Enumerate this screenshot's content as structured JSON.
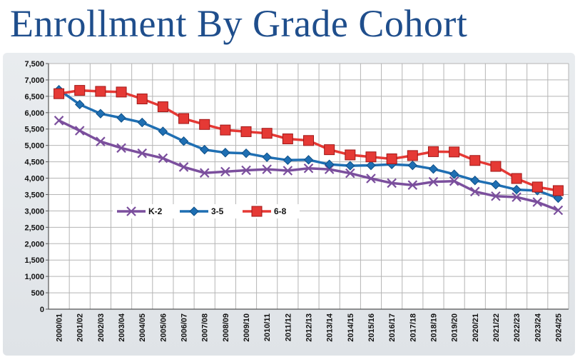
{
  "page": {
    "title": "Enrollment By Grade Cohort"
  },
  "chart_data": {
    "type": "line",
    "title": "Enrollment By Grade Cohort",
    "xlabel": "",
    "ylabel": "",
    "ylim": [
      0,
      7500
    ],
    "yticks": [
      "0",
      "500",
      "1,000",
      "1,500",
      "2,000",
      "2,500",
      "3,000",
      "3,500",
      "4,000",
      "4,500",
      "5,000",
      "5,500",
      "6,000",
      "6,500",
      "7,000",
      "7,500"
    ],
    "grid": true,
    "legend_position": "lower-left",
    "categories": [
      "2000/01",
      "2001/02",
      "2002/03",
      "2003/04",
      "2004/05",
      "2005/06",
      "2006/07",
      "2007/08",
      "2008/09",
      "2009/10",
      "2010/11",
      "2011/12",
      "2012/13",
      "2013/14",
      "2014/15",
      "2015/16",
      "2016/17",
      "2017/18",
      "2018/19",
      "2019/20",
      "2020/21",
      "2021/22",
      "2022/23",
      "2023/24",
      "2024/25"
    ],
    "series": [
      {
        "name": "K-2",
        "color": "#7b4f9d",
        "marker": "x",
        "values": [
          5760,
          5450,
          5120,
          4920,
          4760,
          4610,
          4340,
          4160,
          4200,
          4240,
          4270,
          4230,
          4300,
          4270,
          4150,
          3990,
          3850,
          3790,
          3890,
          3910,
          3590,
          3450,
          3420,
          3270,
          3020
        ]
      },
      {
        "name": "3-5",
        "color": "#1f6fb3",
        "marker": "diamond",
        "values": [
          6700,
          6250,
          5970,
          5840,
          5700,
          5430,
          5130,
          4870,
          4780,
          4760,
          4640,
          4550,
          4560,
          4420,
          4380,
          4390,
          4420,
          4390,
          4280,
          4120,
          3930,
          3800,
          3650,
          3620,
          3390
        ]
      },
      {
        "name": "6-8",
        "color": "#e53935",
        "marker": "square",
        "values": [
          6580,
          6680,
          6650,
          6630,
          6420,
          6180,
          5820,
          5640,
          5470,
          5420,
          5370,
          5200,
          5150,
          4870,
          4710,
          4650,
          4590,
          4690,
          4810,
          4800,
          4540,
          4360,
          3990,
          3730,
          3620
        ]
      }
    ]
  }
}
